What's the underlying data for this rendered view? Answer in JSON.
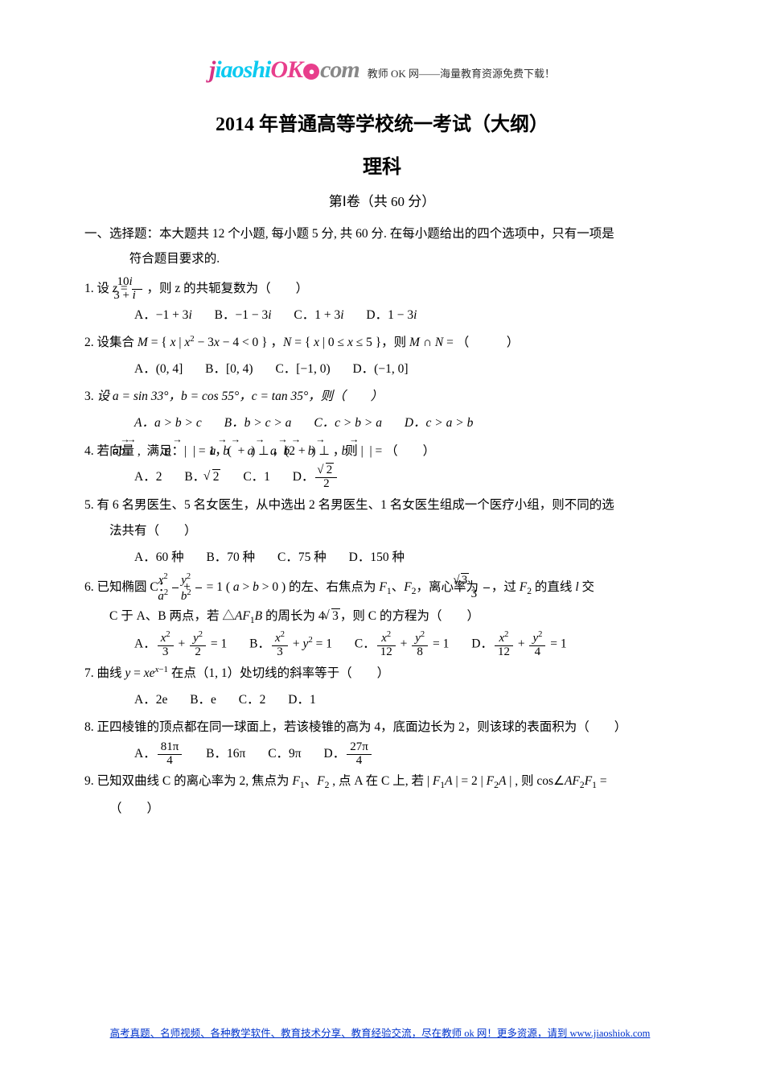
{
  "logo": {
    "tag": "教师 OK 网——海量教育资源免费下载！"
  },
  "title_main": "2014 年普通高等学校统一考试（大纲）",
  "title_sub": "理科",
  "title_sec": "第Ⅰ卷（共 60 分）",
  "section1_line1": "一、选择题：本大题共 12 个小题, 每小题 5 分, 共 60 分.  在每小题给出的四个选项中，只有一项是",
  "section1_line2": "符合题目要求的.",
  "q1": {
    "num": "1.",
    "pre": "设 ",
    "z": "z",
    "eq": " = ",
    "frac_n": "10",
    "frac_n_i": "i",
    "frac_d": "3 + ",
    "frac_d_i": "i",
    "post": " ，则 z 的共轭复数为（　　）",
    "A": "A．",
    "Aval": "−1 + 3",
    "Ai": "i",
    "B": "B．",
    "Bval": "−1 − 3",
    "Bi": "i",
    "C": "C．",
    "Cval": "1 + 3",
    "Ci": "i",
    "D": "D．",
    "Dval": "1 − 3",
    "Di": "i"
  },
  "q2": {
    "num": "2.",
    "stem_a": "设集合 ",
    "M": "M",
    "stem_b": " = { ",
    "x1": "x",
    "stem_c": " | ",
    "x2": "x",
    "sq": "2",
    "stem_d": " − 3",
    "x3": "x",
    "stem_e": " − 4 < 0 } ，",
    "N": "N",
    "stem_f": " = { ",
    "x4": "x",
    "stem_g": " | 0 ≤ ",
    "x5": "x",
    "stem_h": " ≤ 5 }，则 ",
    "M2": "M",
    "cap": " ∩ ",
    "N2": "N",
    "stem_i": " = （　　　）",
    "A": "A．(0, 4]",
    "B": "B．[0, 4)",
    "C": "C．[−1, 0)",
    "D": "D．(−1, 0]"
  },
  "q3": {
    "num": "3.",
    "stem": "设 a = sin 33°，b = cos 55°，c = tan 35°，则（　　）",
    "A": "A．a > b > c",
    "B": "B．b > c > a",
    "C": "C．c > b > a",
    "D": "D．c > a > b"
  },
  "q4": {
    "num": "4.",
    "t1": "若向量 ",
    "a1": "a",
    "c1": ", ",
    "b1": "b",
    "t2": " 满足：| ",
    "a2": "a",
    "t3": " | = 1，( ",
    "a3": "a",
    "t4": " + ",
    "b3": "b",
    "t5": " ) ⊥ ",
    "a4": "a",
    "t6": "，(2",
    "a5": "a",
    "t7": " + ",
    "b5": "b",
    "t8": " ) ⊥ ",
    "b6": "b",
    "t9": "，则 | ",
    "b7": "b",
    "t10": " | = （　　）",
    "A": "A．2",
    "Bpre": "B．",
    "Brad": "2",
    "C": "C．1",
    "Dpre": "D．",
    "D_n_rad": "2",
    "D_d": "2"
  },
  "q5": {
    "num": "5.",
    "line1": "有 6 名男医生、5 名女医生，从中选出 2 名男医生、1 名女医生组成一个医疗小组，则不同的选",
    "line2": "法共有（　　）",
    "A": "A．60 种",
    "B": "B．70 种",
    "C": "C．75 种",
    "D": "D．150 种"
  },
  "q6": {
    "num": "6.",
    "t1": "已知椭圆 C：",
    "f1n": "x",
    "f1n2": "2",
    "f1d": "a",
    "f1d2": "2",
    "plus1": " + ",
    "f2n": "y",
    "f2n2": "2",
    "f2d": "b",
    "f2d2": "2",
    "t2": " = 1 ( ",
    "a": "a",
    "t3": " > ",
    "b": "b",
    "t4": " > 0 ) 的左、右焦点为 ",
    "F1": "F",
    "s1": "1",
    "t5": "、",
    "F2": "F",
    "s2": "2",
    "t6": "，离心率为 ",
    "eccn_rad": "3",
    "eccd": "3",
    "t7": "，过 ",
    "F2b": "F",
    "s2b": "2",
    "t8": " 的直线 ",
    "l": "l",
    "t9": " 交",
    "line2a": "C 于 A、B 两点，若 △",
    "AF1B_A": "A",
    "AF1B_F": "F",
    "AF1B_1": "1",
    "AF1B_B": "B",
    "line2b": " 的周长为 4",
    "rad3": "3",
    "line2c": "，则 C 的方程为（　　）",
    "Apre": "A．",
    "A1n": "x",
    "A1n2": "2",
    "A1d": "3",
    "Aplus": " + ",
    "A2n": "y",
    "A2n2": "2",
    "A2d": "2",
    "Aeq": " = 1",
    "Bpre": "B．",
    "B1n": "x",
    "B1n2": "2",
    "B1d": "3",
    "Bplus": " + ",
    "B2": "y",
    "B2sup": "2",
    "Beq": " = 1",
    "Cpre": "C．",
    "C1n": "x",
    "C1n2": "2",
    "C1d": "12",
    "Cplus": " + ",
    "C2n": "y",
    "C2n2": "2",
    "C2d": "8",
    "Ceq": " = 1",
    "Dpre": "D．",
    "D1n": "x",
    "D1n2": "2",
    "D1d": "12",
    "Dplus": " + ",
    "D2n": "y",
    "D2n2": "2",
    "D2d": "4",
    "Deq": " = 1"
  },
  "q7": {
    "num": "7.",
    "t1": "曲线 ",
    "y": "y",
    "t2": " = ",
    "x1": "x",
    "e": "e",
    "exp1": "x",
    "exp2": "−1",
    "t3": " 在点（1, 1）处切线的斜率等于（　　）",
    "A": "A．2e",
    "B": "B．e",
    "C": "C．2",
    "D": "D．1"
  },
  "q8": {
    "num": "8.",
    "stem": "正四棱锥的顶点都在同一球面上，若该棱锥的高为 4，底面边长为 2，则该球的表面积为（　　）",
    "Apre": "A．",
    "An": "81π",
    "Ad": "4",
    "B": "B．16π",
    "C": "C．9π",
    "Dpre": "D．",
    "Dn": "27π",
    "Dd": "4"
  },
  "q9": {
    "num": "9.",
    "t1": "已知双曲线 C 的离心率为 2, 焦点为 ",
    "F1": "F",
    "s1": "1",
    "t2": "、",
    "F2": "F",
    "s2": "2",
    "t3": " , 点 A 在 C 上, 若 | ",
    "F1b": "F",
    "s1b": "1",
    "A1": "A",
    "t4": " | = 2 | ",
    "F2b": "F",
    "s2b": "2",
    "A2": "A",
    "t5": " | , 则 cos∠",
    "A3": "A",
    "F2c": "F",
    "s2c": "2",
    "F1c": "F",
    "s1c": "1",
    "t6": " =",
    "line2": "（　　）"
  },
  "footer": "高考真题、名师视频、各种教学软件、教育技术分享、教育经验交流，尽在教师 ok 网！更多资源，请到 www.jiaoshiok.com"
}
